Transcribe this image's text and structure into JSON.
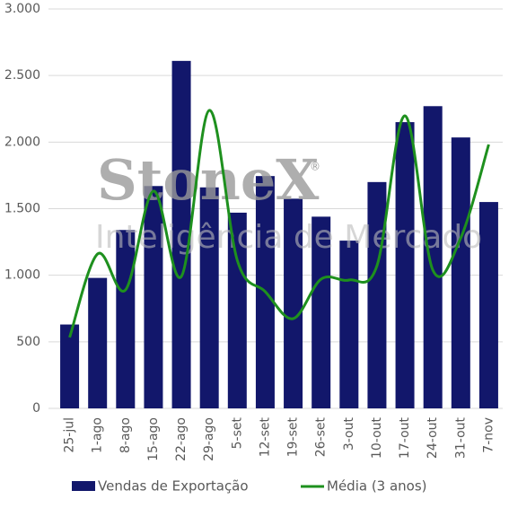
{
  "chart_data": {
    "type": "bar",
    "watermark": {
      "brand": "StoneX",
      "brand_mark": "®",
      "subtitle": "Inteligência de Mercado"
    },
    "categories": [
      "25-jul",
      "1-ago",
      "8-ago",
      "15-ago",
      "22-ago",
      "29-ago",
      "5-set",
      "12-set",
      "19-set",
      "26-set",
      "3-out",
      "10-out",
      "17-out",
      "24-out",
      "31-out",
      "7-nov"
    ],
    "series": [
      {
        "name": "Vendas de Exportação",
        "type": "bar",
        "color": "#12176b",
        "values": [
          630,
          980,
          1340,
          1670,
          2610,
          1660,
          1470,
          1745,
          1575,
          1440,
          1260,
          1700,
          2150,
          2270,
          2035,
          1550
        ]
      },
      {
        "name": "Média (3 anos)",
        "type": "line",
        "color": "#1e901e",
        "values": [
          533,
          1160,
          890,
          1632,
          991,
          2239,
          1113,
          877,
          674,
          971,
          964,
          1072,
          2198,
          1038,
          1281,
          1982
        ]
      }
    ],
    "ylim": [
      0,
      3000
    ],
    "yticks": [
      0,
      500,
      {
        "value": 1000,
        "label": "1.000"
      },
      {
        "value": 1500,
        "label": "1.500"
      },
      {
        "value": 2000,
        "label": "2.000"
      },
      {
        "value": 2500,
        "label": "2.500"
      },
      {
        "value": 3000,
        "label": "3.000"
      }
    ],
    "grid": true,
    "legend": "bottom"
  }
}
